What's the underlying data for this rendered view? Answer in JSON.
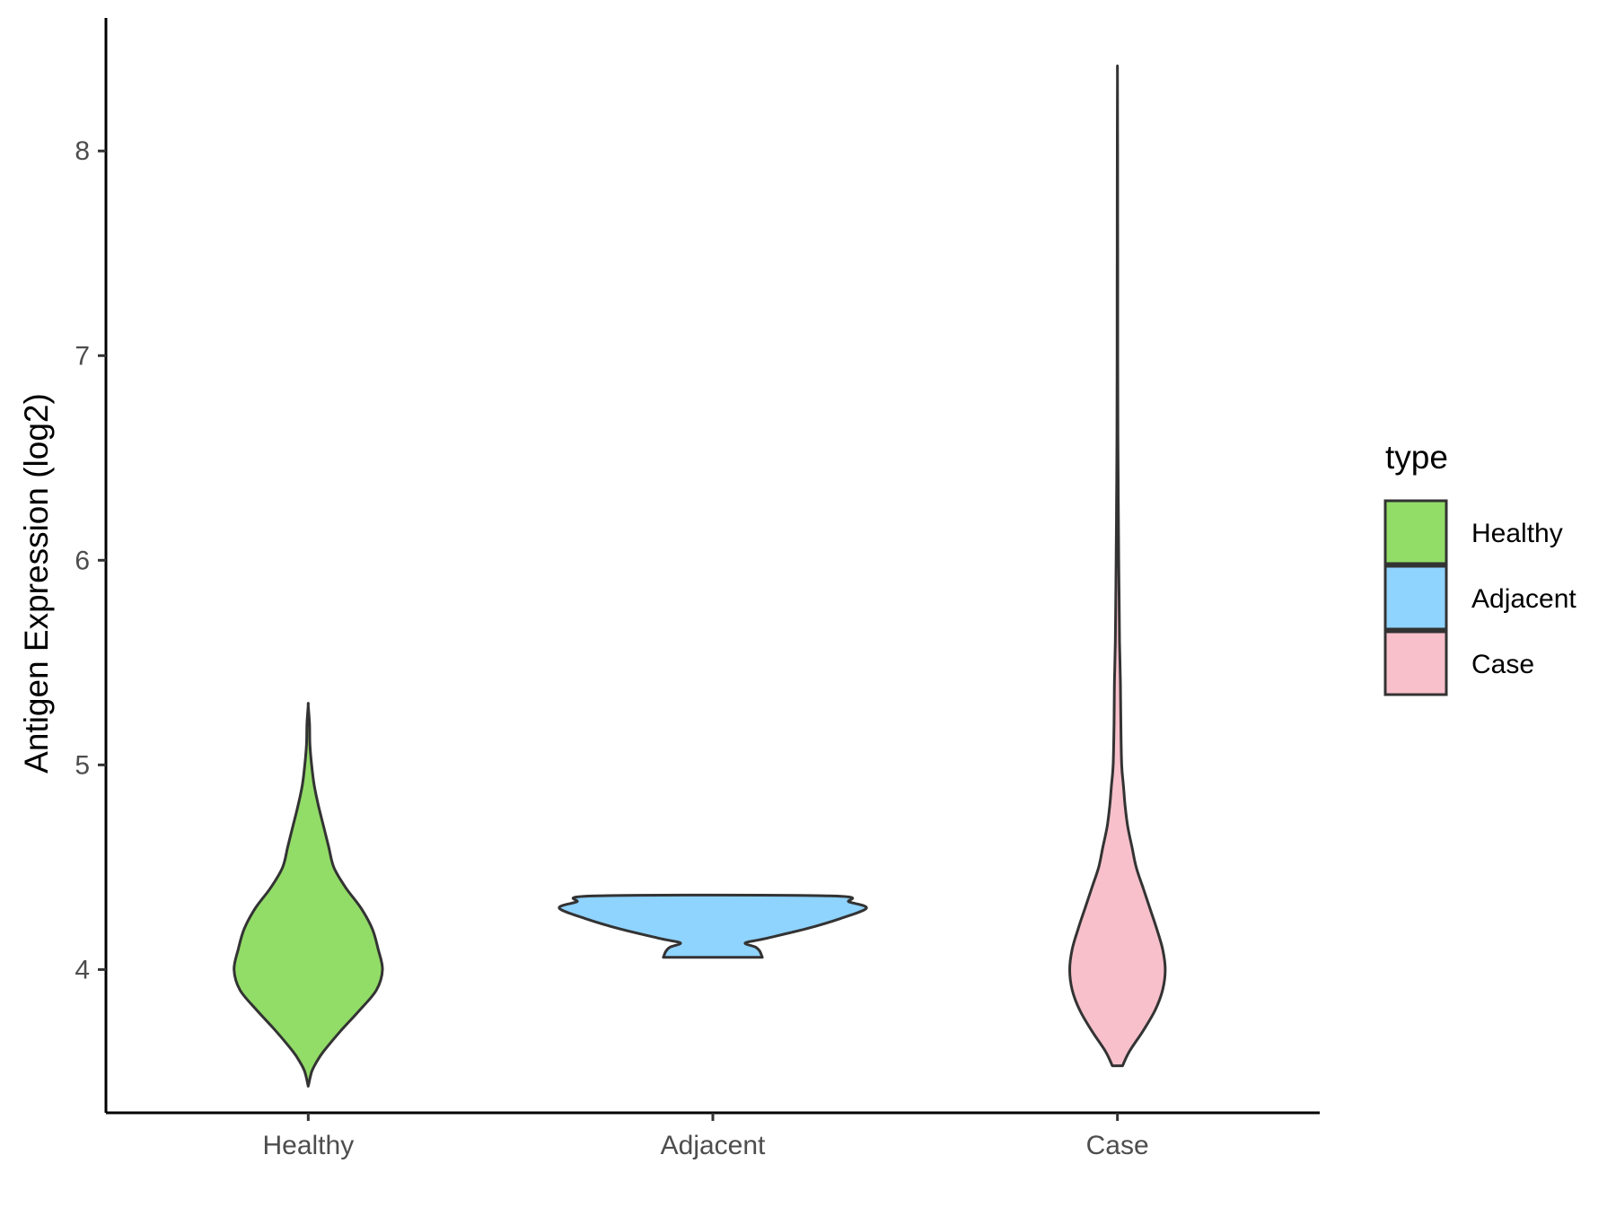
{
  "chart_data": {
    "type": "violin",
    "title": "",
    "xlabel": "",
    "ylabel": "Antigen Expression (log2)",
    "ylim": [
      3.3,
      8.65
    ],
    "yticks": [
      4,
      5,
      6,
      7,
      8
    ],
    "grid": false,
    "legend": {
      "title": "type",
      "position": "right",
      "entries": [
        "Healthy",
        "Adjacent",
        "Case"
      ]
    },
    "categories": [
      "Healthy",
      "Adjacent",
      "Case"
    ],
    "series": [
      {
        "name": "Healthy",
        "color": "#92dc68",
        "min": 3.43,
        "max": 5.29,
        "density": [
          [
            3.43,
            0.0
          ],
          [
            3.5,
            0.04
          ],
          [
            3.55,
            0.1
          ],
          [
            3.6,
            0.18
          ],
          [
            3.7,
            0.38
          ],
          [
            3.8,
            0.6
          ],
          [
            3.9,
            0.8
          ],
          [
            4.0,
            0.87
          ],
          [
            4.1,
            0.82
          ],
          [
            4.2,
            0.75
          ],
          [
            4.3,
            0.62
          ],
          [
            4.4,
            0.44
          ],
          [
            4.5,
            0.3
          ],
          [
            4.6,
            0.24
          ],
          [
            4.7,
            0.18
          ],
          [
            4.8,
            0.12
          ],
          [
            4.9,
            0.07
          ],
          [
            5.0,
            0.04
          ],
          [
            5.1,
            0.02
          ],
          [
            5.2,
            0.015
          ],
          [
            5.29,
            0.0
          ]
        ]
      },
      {
        "name": "Adjacent",
        "color": "#8fd3ff",
        "min": 4.06,
        "max": 4.36,
        "density": [
          [
            4.06,
            0.58
          ],
          [
            4.09,
            0.55
          ],
          [
            4.11,
            0.5
          ],
          [
            4.13,
            0.38
          ],
          [
            4.15,
            0.6
          ],
          [
            4.2,
            1.1
          ],
          [
            4.25,
            1.5
          ],
          [
            4.3,
            1.8
          ],
          [
            4.33,
            1.6
          ],
          [
            4.36,
            1.36
          ]
        ]
      },
      {
        "name": "Case",
        "color": "#f7c0cb",
        "min": 3.53,
        "max": 8.37,
        "density": [
          [
            3.53,
            0.06
          ],
          [
            3.6,
            0.14
          ],
          [
            3.7,
            0.3
          ],
          [
            3.8,
            0.44
          ],
          [
            3.9,
            0.53
          ],
          [
            4.0,
            0.56
          ],
          [
            4.1,
            0.53
          ],
          [
            4.2,
            0.46
          ],
          [
            4.3,
            0.38
          ],
          [
            4.4,
            0.3
          ],
          [
            4.5,
            0.22
          ],
          [
            4.6,
            0.17
          ],
          [
            4.7,
            0.12
          ],
          [
            4.8,
            0.09
          ],
          [
            4.9,
            0.07
          ],
          [
            5.0,
            0.05
          ],
          [
            5.2,
            0.04
          ],
          [
            5.4,
            0.035
          ],
          [
            5.6,
            0.025
          ],
          [
            5.8,
            0.02
          ],
          [
            6.0,
            0.015
          ],
          [
            6.3,
            0.01
          ],
          [
            6.6,
            0.006
          ],
          [
            7.0,
            0.004
          ],
          [
            7.5,
            0.003
          ],
          [
            8.0,
            0.002
          ],
          [
            8.37,
            0.0
          ]
        ]
      }
    ]
  }
}
